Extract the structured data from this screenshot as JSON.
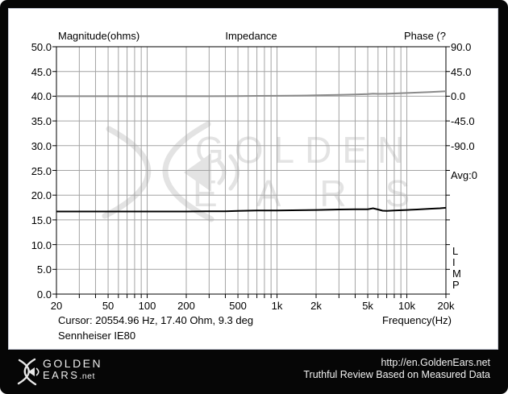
{
  "chart": {
    "title": "Impedance",
    "left_axis_title": "Magnitude(ohms)",
    "right_axis_title": "Phase (?",
    "x_axis_title": "Frequency(Hz)",
    "left_ticks": [
      "50.0",
      "45.0",
      "40.0",
      "35.0",
      "30.0",
      "25.0",
      "20.0",
      "15.0",
      "10.0",
      "5.0",
      "0.0"
    ],
    "right_ticks": [
      "90.0",
      "45.0",
      "0.0",
      "-45.0",
      "-90.0"
    ],
    "right_avg_label": "Avg:0",
    "x_ticks": [
      {
        "f": 20,
        "label": "20"
      },
      {
        "f": 50,
        "label": "50"
      },
      {
        "f": 100,
        "label": "100"
      },
      {
        "f": 200,
        "label": "200"
      },
      {
        "f": 500,
        "label": "500"
      },
      {
        "f": 1000,
        "label": "1k"
      },
      {
        "f": 2000,
        "label": "2k"
      },
      {
        "f": 5000,
        "label": "5k"
      },
      {
        "f": 10000,
        "label": "10k"
      },
      {
        "f": 20000,
        "label": "20k"
      }
    ],
    "legend_vertical": [
      "L",
      "I",
      "M",
      "P"
    ],
    "cursor_text": "Cursor: 20554.96 Hz, 17.40 Ohm, 9.3 deg",
    "device_label": "Sennheiser IE80",
    "colors": {
      "grid": "#a4a4a4",
      "plot_border": "#000000",
      "magnitude_trace": "#000000",
      "phase_trace": "#8a8a8a",
      "watermark": "#e3e3e3"
    }
  },
  "watermark": {
    "line1": "GOLDEN",
    "line2": "EARS"
  },
  "footer": {
    "brand_line1": "GOLDEN",
    "brand_line2": "EARS",
    "brand_suffix": ".net",
    "url": "http://en.GoldenEars.net",
    "tagline": "Truthful Review Based on Measured Data"
  },
  "chart_data": {
    "type": "line",
    "title": "Impedance",
    "device": "Sennheiser IE80",
    "legend": "LIMP",
    "x_axis": {
      "label": "Frequency(Hz)",
      "scale": "log",
      "range": [
        20,
        20000
      ],
      "ticks": [
        "20",
        "50",
        "100",
        "200",
        "500",
        "1k",
        "2k",
        "5k",
        "10k",
        "20k"
      ]
    },
    "y_left": {
      "label": "Magnitude(ohms)",
      "range": [
        0,
        50
      ],
      "tick_step": 5,
      "grid": true
    },
    "y_right": {
      "label": "Phase (deg)",
      "ticks": [
        90,
        45,
        0,
        -45,
        -90
      ],
      "degrees_per_division": 45,
      "zero_aligned_with_left_value": 40,
      "average_label": "Avg:0"
    },
    "cursor": {
      "frequency_hz": 20554.96,
      "magnitude_ohm": 17.4,
      "phase_deg": 9.3
    },
    "series": [
      {
        "name": "magnitude_ohms",
        "axis": "left",
        "color": "#000000",
        "points": [
          [
            20,
            16.7
          ],
          [
            30,
            16.7
          ],
          [
            50,
            16.7
          ],
          [
            70,
            16.7
          ],
          [
            100,
            16.7
          ],
          [
            150,
            16.7
          ],
          [
            200,
            16.7
          ],
          [
            300,
            16.75
          ],
          [
            400,
            16.75
          ],
          [
            500,
            16.8
          ],
          [
            700,
            16.9
          ],
          [
            1000,
            16.9
          ],
          [
            1500,
            16.95
          ],
          [
            2000,
            17.0
          ],
          [
            3000,
            17.1
          ],
          [
            4000,
            17.15
          ],
          [
            5000,
            17.15
          ],
          [
            5500,
            17.35
          ],
          [
            6000,
            17.1
          ],
          [
            6500,
            16.85
          ],
          [
            7000,
            16.8
          ],
          [
            8000,
            16.9
          ],
          [
            10000,
            17.0
          ],
          [
            12000,
            17.1
          ],
          [
            15000,
            17.25
          ],
          [
            18000,
            17.35
          ],
          [
            20000,
            17.45
          ]
        ]
      },
      {
        "name": "phase_deg",
        "axis": "right",
        "color": "#8a8a8a",
        "points": [
          [
            20,
            0
          ],
          [
            50,
            0
          ],
          [
            100,
            0
          ],
          [
            200,
            0
          ],
          [
            300,
            0
          ],
          [
            500,
            0.3
          ],
          [
            700,
            0.6
          ],
          [
            1000,
            0.8
          ],
          [
            1500,
            1.2
          ],
          [
            2000,
            1.6
          ],
          [
            3000,
            2.4
          ],
          [
            4000,
            3.2
          ],
          [
            5000,
            4.0
          ],
          [
            5500,
            4.6
          ],
          [
            6000,
            4.2
          ],
          [
            7000,
            4.4
          ],
          [
            8000,
            5.0
          ],
          [
            10000,
            5.8
          ],
          [
            12000,
            6.6
          ],
          [
            15000,
            7.6
          ],
          [
            18000,
            8.5
          ],
          [
            20000,
            9.0
          ]
        ]
      }
    ]
  }
}
